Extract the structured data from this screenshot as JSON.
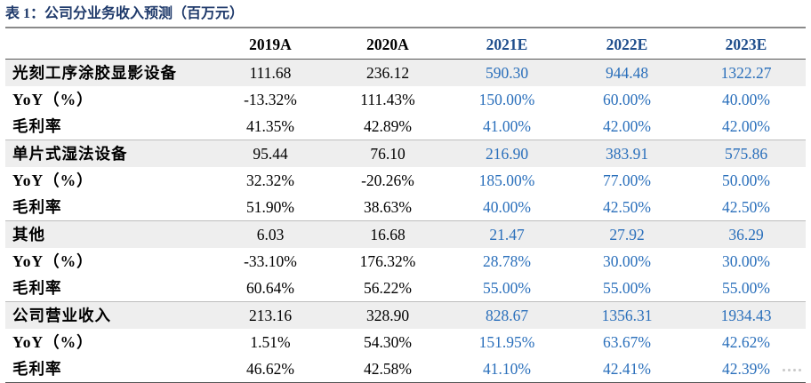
{
  "caption": "表 1：公司分业务收入预测（百万元）",
  "columns": {
    "label": "",
    "years": [
      {
        "label": "2019A",
        "forecast": false
      },
      {
        "label": "2020A",
        "forecast": false
      },
      {
        "label": "2021E",
        "forecast": true
      },
      {
        "label": "2022E",
        "forecast": true
      },
      {
        "label": "2023E",
        "forecast": true
      }
    ]
  },
  "rows": [
    {
      "label": "光刻工序涂胶显影设备",
      "section": true,
      "values": [
        "111.68",
        "236.12",
        "590.30",
        "944.48",
        "1322.27"
      ]
    },
    {
      "label": "YoY（%）",
      "section": false,
      "values": [
        "-13.32%",
        "111.43%",
        "150.00%",
        "60.00%",
        "40.00%"
      ]
    },
    {
      "label": "毛利率",
      "section": false,
      "values": [
        "41.35%",
        "42.89%",
        "41.00%",
        "42.00%",
        "42.00%"
      ]
    },
    {
      "label": "单片式湿法设备",
      "section": true,
      "values": [
        "95.44",
        "76.10",
        "216.90",
        "383.91",
        "575.86"
      ]
    },
    {
      "label": "YoY（%）",
      "section": false,
      "values": [
        "32.32%",
        "-20.26%",
        "185.00%",
        "77.00%",
        "50.00%"
      ]
    },
    {
      "label": "毛利率",
      "section": false,
      "values": [
        "51.90%",
        "38.63%",
        "40.00%",
        "42.50%",
        "42.50%"
      ]
    },
    {
      "label": "其他",
      "section": true,
      "values": [
        "6.03",
        "16.68",
        "21.47",
        "27.92",
        "36.29"
      ]
    },
    {
      "label": "YoY（%）",
      "section": false,
      "values": [
        "-33.10%",
        "176.32%",
        "28.78%",
        "30.00%",
        "30.00%"
      ]
    },
    {
      "label": "毛利率",
      "section": false,
      "values": [
        "60.64%",
        "56.22%",
        "55.00%",
        "55.00%",
        "55.00%"
      ]
    },
    {
      "label": "公司营业收入",
      "section": true,
      "values": [
        "213.16",
        "328.90",
        "828.67",
        "1356.31",
        "1934.43"
      ]
    },
    {
      "label": "YoY（%）",
      "section": false,
      "values": [
        "1.51%",
        "54.30%",
        "151.95%",
        "63.67%",
        "42.62%"
      ]
    },
    {
      "label": "毛利率",
      "section": false,
      "values": [
        "46.62%",
        "42.58%",
        "41.10%",
        "42.41%",
        "42.39%"
      ]
    }
  ],
  "colors": {
    "forecast_value": "#2a6fbb",
    "forecast_header": "#1f4e8c",
    "caption": "#1f3a6b",
    "section_band": "#eeeeee"
  }
}
